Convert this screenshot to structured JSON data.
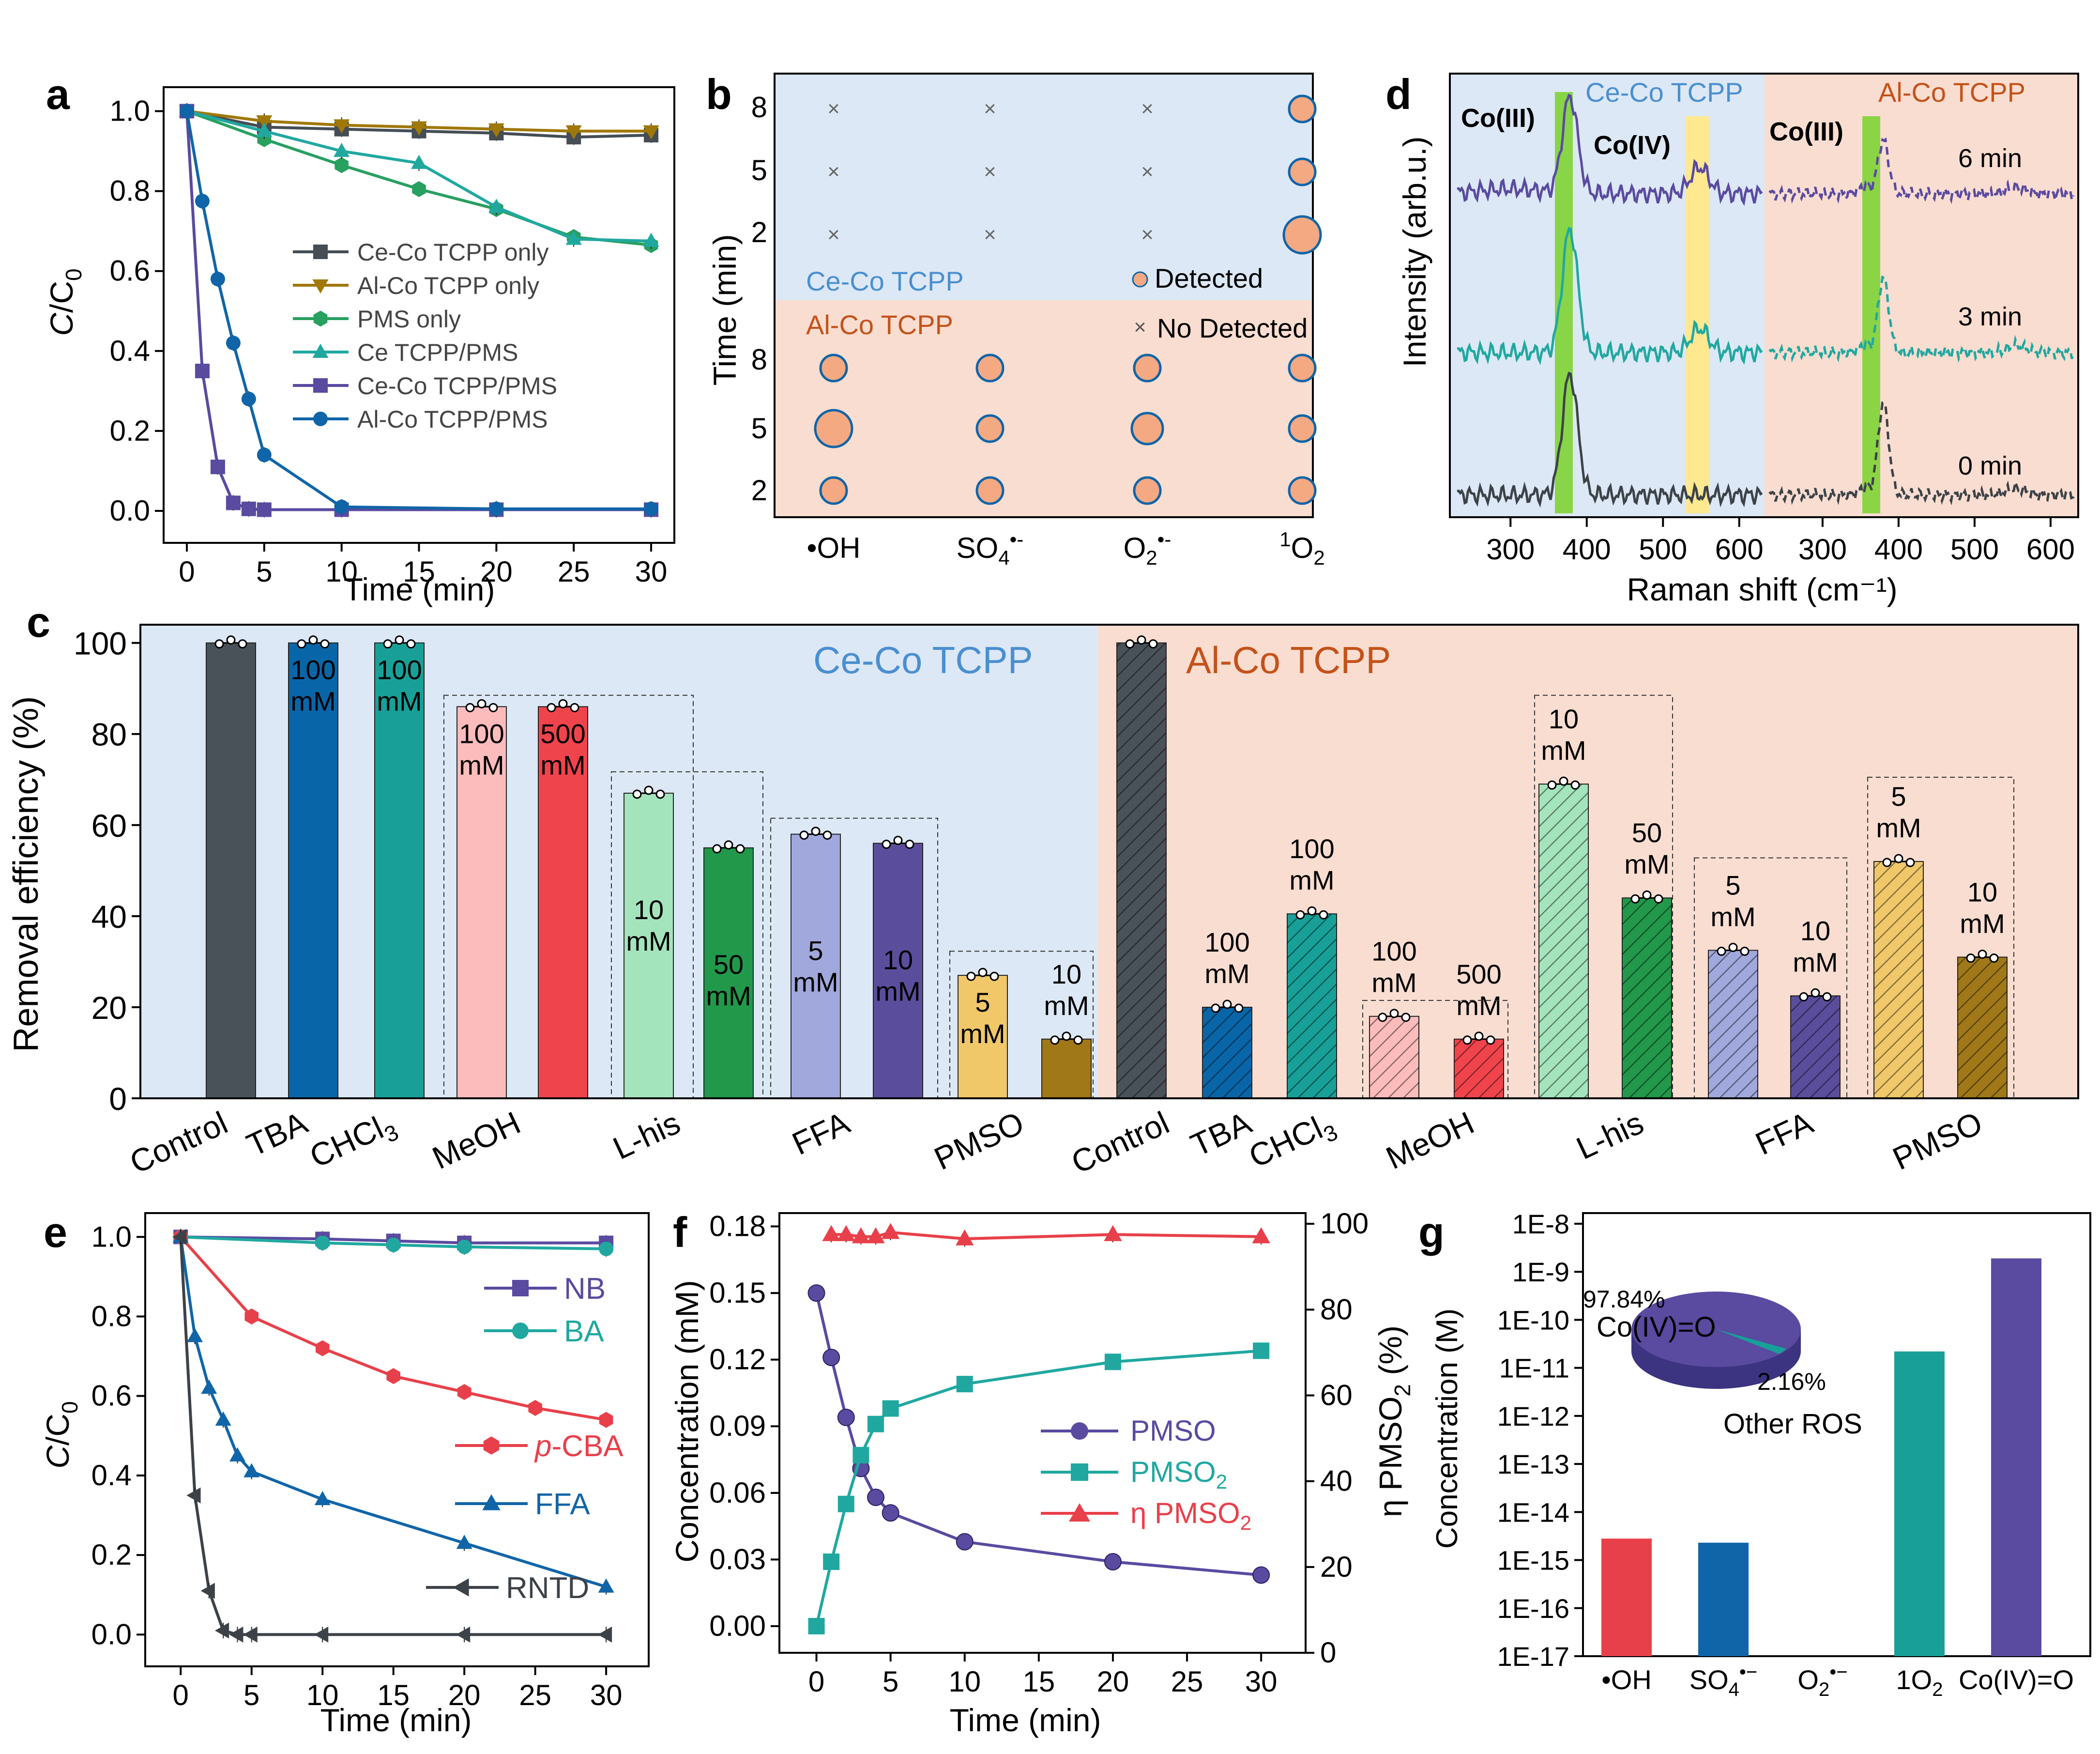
{
  "colors": {
    "cecoBg": "#dce8f5",
    "alcoBg": "#f9ddd0",
    "cecoText": "#4a8fd0",
    "alcoText": "#c4521a",
    "grey": "#454d55",
    "gold": "#a07808",
    "green": "#28a060",
    "teal": "#20a8a0",
    "purple": "#5a4aa0",
    "blue": "#1065a8",
    "red": "#e8404a",
    "dark": "#3c4248"
  },
  "chart_data": [
    {
      "panel": "a",
      "type": "line",
      "xlabel": "Time (min)",
      "ylabel": "C/C0",
      "xlim": [
        -1.5,
        31.5
      ],
      "ylim": [
        -0.08,
        1.06
      ],
      "xticks": [
        0,
        5,
        10,
        15,
        20,
        25,
        30
      ],
      "yticks": [
        0.0,
        0.2,
        0.4,
        0.6,
        0.8,
        1.0
      ],
      "yticklabels": [
        "0.0",
        "0.2",
        "0.4",
        "0.6",
        "0.8",
        "1.0"
      ],
      "series": [
        {
          "name": "Ce-Co TCPP only",
          "color": "#454d55",
          "marker": "square",
          "x": [
            0,
            5,
            10,
            15,
            20,
            25,
            30
          ],
          "y": [
            1.0,
            0.96,
            0.955,
            0.95,
            0.945,
            0.935,
            0.94
          ]
        },
        {
          "name": "Al-Co TCPP only",
          "color": "#a07808",
          "marker": "triangle-down",
          "x": [
            0,
            5,
            10,
            15,
            20,
            25,
            30
          ],
          "y": [
            1.0,
            0.975,
            0.965,
            0.96,
            0.955,
            0.95,
            0.95
          ]
        },
        {
          "name": "PMS only",
          "color": "#28a060",
          "marker": "hexagon",
          "x": [
            0,
            5,
            10,
            15,
            20,
            25,
            30
          ],
          "y": [
            1.0,
            0.93,
            0.865,
            0.805,
            0.755,
            0.685,
            0.665
          ]
        },
        {
          "name": "Ce TCPP/PMS",
          "color": "#20a8a0",
          "marker": "triangle",
          "x": [
            0,
            5,
            10,
            15,
            20,
            25,
            30
          ],
          "y": [
            1.0,
            0.95,
            0.9,
            0.87,
            0.76,
            0.68,
            0.675
          ]
        },
        {
          "name": "Ce-Co TCPP/PMS",
          "color": "#5a4aa0",
          "marker": "square",
          "x": [
            0,
            1,
            2,
            3,
            4,
            5,
            10,
            20,
            30
          ],
          "y": [
            1.0,
            0.35,
            0.11,
            0.02,
            0.005,
            0.003,
            0.003,
            0.003,
            0.003
          ]
        },
        {
          "name": "Al-Co TCPP/PMS",
          "color": "#1065a8",
          "marker": "circle",
          "x": [
            0,
            1,
            2,
            3,
            4,
            5,
            10,
            20,
            30
          ],
          "y": [
            1.0,
            0.775,
            0.58,
            0.42,
            0.28,
            0.14,
            0.01,
            0.005,
            0.005
          ]
        }
      ]
    },
    {
      "panel": "b",
      "type": "bubble",
      "ylabel": "Time (min)",
      "categories": [
        "•OH",
        "SO4•-",
        "O2•-",
        "1O2"
      ],
      "timepoints": [
        8,
        5,
        2
      ],
      "groups": [
        {
          "name": "Ce-Co TCPP",
          "size": [
            [
              0,
              0,
              0,
              2
            ],
            [
              0,
              0,
              0,
              2
            ],
            [
              0,
              0,
              0,
              3
            ]
          ]
        },
        {
          "name": "Al-Co TCPP",
          "size": [
            [
              2,
              2,
              2,
              2
            ],
            [
              3,
              2,
              2.5,
              2
            ],
            [
              2,
              2,
              2,
              2
            ]
          ]
        }
      ],
      "legend": [
        "Detected",
        "No Detected"
      ]
    },
    {
      "panel": "d",
      "type": "line",
      "xlabel": "Raman shift (cm⁻¹)",
      "ylabel": "Intensity (arb.u.)",
      "xticks": [
        300,
        400,
        500,
        600
      ],
      "groups": [
        "Ce-Co TCPP",
        "Al-Co TCPP"
      ],
      "times": [
        "6 min",
        "3 min",
        "0 min"
      ],
      "peaks": [
        {
          "label": "Co(III)",
          "position": 378,
          "group": "Ce-Co TCPP"
        },
        {
          "label": "Co(IV)",
          "position": 548,
          "group": "Ce-Co TCPP"
        },
        {
          "label": "Co(III)",
          "position": 380,
          "group": "Al-Co TCPP"
        }
      ],
      "series": [
        {
          "name": "6 min",
          "color": "#5a4aa0"
        },
        {
          "name": "3 min",
          "color": "#20a8a0"
        },
        {
          "name": "0 min",
          "color": "#3c4248"
        }
      ]
    },
    {
      "panel": "c",
      "type": "bar",
      "ylabel": "Removal efficiency (%)",
      "ylim": [
        0,
        104
      ],
      "yticks": [
        0,
        20,
        40,
        60,
        80,
        100
      ],
      "groups": [
        "Ce-Co TCPP",
        "Al-Co TCPP"
      ],
      "categories": [
        "Control",
        "TBA",
        "CHCl3",
        "MeOH",
        "L-his",
        "FFA",
        "PMSO",
        "Control",
        "TBA",
        "CHCl3",
        "MeOH",
        "L-his",
        "FFA",
        "PMSO"
      ],
      "bars": [
        {
          "scavenger": "Control",
          "group": "Ce-Co TCPP",
          "value": 100,
          "color": "#4a5259",
          "label": ""
        },
        {
          "scavenger": "TBA",
          "group": "Ce-Co TCPP",
          "value": 100,
          "color": "#0866a8",
          "label": "100 mM"
        },
        {
          "scavenger": "CHCl3",
          "group": "Ce-Co TCPP",
          "value": 100,
          "color": "#18a098",
          "label": "100 mM"
        },
        {
          "scavenger": "MeOH",
          "group": "Ce-Co TCPP",
          "value": 86,
          "color": "#fdbcbc",
          "label": "100 mM"
        },
        {
          "scavenger": "MeOH",
          "group": "Ce-Co TCPP",
          "value": 86,
          "color": "#f0444c",
          "label": "500 mM"
        },
        {
          "scavenger": "L-his",
          "group": "Ce-Co TCPP",
          "value": 67,
          "color": "#a4e4bc",
          "label": "10 mM"
        },
        {
          "scavenger": "L-his",
          "group": "Ce-Co TCPP",
          "value": 55,
          "color": "#22984a",
          "label": "50 mM"
        },
        {
          "scavenger": "FFA",
          "group": "Ce-Co TCPP",
          "value": 58,
          "color": "#a0a8dc",
          "label": "5 mM"
        },
        {
          "scavenger": "FFA",
          "group": "Ce-Co TCPP",
          "value": 56,
          "color": "#5a4e9c",
          "label": "10 mM"
        },
        {
          "scavenger": "PMSO",
          "group": "Ce-Co TCPP",
          "value": 27,
          "color": "#f0c86a",
          "label": "5 mM"
        },
        {
          "scavenger": "PMSO",
          "group": "Ce-Co TCPP",
          "value": 13,
          "color": "#a07818",
          "label": "10 mM"
        },
        {
          "scavenger": "Control",
          "group": "Al-Co TCPP",
          "value": 100,
          "color": "#4a5259",
          "label": ""
        },
        {
          "scavenger": "TBA",
          "group": "Al-Co TCPP",
          "value": 20,
          "color": "#0866a8",
          "label": "100 mM"
        },
        {
          "scavenger": "CHCl3",
          "group": "Al-Co TCPP",
          "value": 40.5,
          "color": "#18a098",
          "label": "100 mM"
        },
        {
          "scavenger": "MeOH",
          "group": "Al-Co TCPP",
          "value": 18,
          "color": "#fdbcbc",
          "label": "100 mM"
        },
        {
          "scavenger": "MeOH",
          "group": "Al-Co TCPP",
          "value": 13,
          "color": "#f0444c",
          "label": "500 mM"
        },
        {
          "scavenger": "L-his",
          "group": "Al-Co TCPP",
          "value": 69,
          "color": "#a4e4bc",
          "label": "10 mM"
        },
        {
          "scavenger": "L-his",
          "group": "Al-Co TCPP",
          "value": 44,
          "color": "#22984a",
          "label": "50 mM"
        },
        {
          "scavenger": "FFA",
          "group": "Al-Co TCPP",
          "value": 32.5,
          "color": "#a0a8dc",
          "label": "5 mM"
        },
        {
          "scavenger": "FFA",
          "group": "Al-Co TCPP",
          "value": 22.5,
          "color": "#5a4e9c",
          "label": "10 mM"
        },
        {
          "scavenger": "PMSO",
          "group": "Al-Co TCPP",
          "value": 52,
          "color": "#f0c86a",
          "label": "5 mM"
        },
        {
          "scavenger": "PMSO",
          "group": "Al-Co TCPP",
          "value": 31,
          "color": "#a07818",
          "label": "10 mM"
        }
      ]
    },
    {
      "panel": "e",
      "type": "line",
      "xlabel": "Time (min)",
      "ylabel": "C/C0",
      "xlim": [
        -2.5,
        33
      ],
      "ylim": [
        -0.08,
        1.06
      ],
      "xticks": [
        0,
        5,
        10,
        15,
        20,
        25,
        30
      ],
      "yticks": [
        0.0,
        0.2,
        0.4,
        0.6,
        0.8,
        1.0
      ],
      "yticklabels": [
        "0.0",
        "0.2",
        "0.4",
        "0.6",
        "0.8",
        "1.0"
      ],
      "series": [
        {
          "name": "NB",
          "color": "#5a4aa0",
          "marker": "square",
          "x": [
            0,
            10,
            15,
            20,
            30
          ],
          "y": [
            1.0,
            0.995,
            0.99,
            0.985,
            0.985
          ]
        },
        {
          "name": "BA",
          "color": "#20a8a0",
          "marker": "circle",
          "x": [
            0,
            10,
            15,
            20,
            30
          ],
          "y": [
            1.0,
            0.985,
            0.98,
            0.975,
            0.97
          ]
        },
        {
          "name": "p-CBA",
          "color": "#e8404a",
          "marker": "hexagon",
          "x": [
            0,
            5,
            10,
            15,
            20,
            25,
            30
          ],
          "y": [
            1.0,
            0.8,
            0.72,
            0.65,
            0.61,
            0.57,
            0.54
          ]
        },
        {
          "name": "FFA",
          "color": "#1065a8",
          "marker": "triangle",
          "x": [
            0,
            1,
            2,
            3,
            4,
            5,
            10,
            20,
            30
          ],
          "y": [
            1.0,
            0.75,
            0.62,
            0.54,
            0.45,
            0.41,
            0.34,
            0.23,
            0.12
          ]
        },
        {
          "name": "RNTD",
          "color": "#3c4248",
          "marker": "triangle-left",
          "x": [
            0,
            1,
            2,
            3,
            4,
            5,
            10,
            20,
            30
          ],
          "y": [
            1.0,
            0.35,
            0.11,
            0.01,
            0.0,
            0.0,
            0.0,
            0.0,
            0.0
          ]
        }
      ]
    },
    {
      "panel": "f",
      "type": "line",
      "xlabel": "Time (min)",
      "ylabel": "Concentration (mM)",
      "ylabel2": "η PMSO2 (%)",
      "xlim": [
        -2.5,
        33
      ],
      "ylim": [
        -0.012,
        0.186
      ],
      "y2lim": [
        0,
        102.5
      ],
      "xticks": [
        0,
        5,
        10,
        15,
        20,
        25,
        30
      ],
      "yticks": [
        0.0,
        0.03,
        0.06,
        0.09,
        0.12,
        0.15,
        0.18
      ],
      "yticklabels": [
        "0.00",
        "0.03",
        "0.06",
        "0.09",
        "0.12",
        "0.15",
        "0.18"
      ],
      "y2ticks": [
        0,
        20,
        40,
        60,
        80,
        100
      ],
      "series": [
        {
          "name": "PMSO",
          "color": "#5a4aa0",
          "marker": "sphere",
          "axis": "left",
          "x": [
            0,
            1,
            2,
            3,
            4,
            5,
            10,
            20,
            30
          ],
          "y": [
            0.15,
            0.121,
            0.094,
            0.071,
            0.058,
            0.051,
            0.038,
            0.029,
            0.023
          ]
        },
        {
          "name": "PMSO2",
          "color": "#20a8a0",
          "marker": "square",
          "axis": "left",
          "x": [
            0,
            1,
            2,
            3,
            4,
            5,
            10,
            20,
            30
          ],
          "y": [
            0.0,
            0.029,
            0.055,
            0.077,
            0.091,
            0.098,
            0.109,
            0.119,
            0.124
          ]
        },
        {
          "name": "η PMSO2",
          "color": "#e8404a",
          "marker": "triangle",
          "axis": "right",
          "x": [
            1,
            2,
            3,
            4,
            5,
            10,
            20,
            30
          ],
          "y": [
            97.5,
            97.5,
            97,
            97,
            98,
            96.5,
            97.5,
            97
          ]
        }
      ]
    },
    {
      "panel": "g",
      "type": "bar",
      "ylabel": "Concentration (M)",
      "yscale": "log",
      "ylim": [
        1e-17,
        1e-08
      ],
      "yticklabels": [
        "1E-8",
        "1E-9",
        "1E-10",
        "1E-11",
        "1E-12",
        "1E-13",
        "1E-14",
        "1E-15",
        "1E-16",
        "1E-17"
      ],
      "categories": [
        "•OH",
        "SO4•-",
        "O2•-",
        "1O2",
        "Co(IV)=O"
      ],
      "values": [
        2.8e-15,
        2.3e-15,
        null,
        2.2e-11,
        1.9e-09
      ],
      "colors": [
        "#e8404a",
        "#1065a8",
        "#888888",
        "#18a098",
        "#5a4aa0"
      ],
      "inset_pie": {
        "slices": [
          {
            "label": "Co(IV)=O",
            "percent": 97.84,
            "color": "#5a4aa0"
          },
          {
            "label": "Other ROS",
            "percent": 2.16,
            "color": "#18a098"
          }
        ],
        "labels": [
          "97.84%",
          "2.16%"
        ]
      }
    }
  ],
  "text": {
    "panels": {
      "a": "a",
      "b": "b",
      "c": "c",
      "d": "d",
      "e": "e",
      "f": "f",
      "g": "g"
    },
    "a": {
      "ylab_main": "C",
      "ylab_rest": "/C",
      "ylab_sub": "0",
      "xlab": "Time (min)"
    },
    "b": {
      "ylab": "Time (min)",
      "ceco": "Ce-Co TCPP",
      "alco": "Al-Co TCPP",
      "legend_detected": "Detected",
      "legend_none": "No Detected",
      "tick8": "8",
      "tick5": "5",
      "tick2": "2",
      "cat_oh": "•OH",
      "cat_so4_main": "SO",
      "cat_so4_sub": "4",
      "cat_so4_sup": "•-",
      "cat_o2_main": "O",
      "cat_o2_sub": "2",
      "cat_o2_sup": "•-",
      "cat_1o2_sup": "1",
      "cat_1o2_main": "O",
      "cat_1o2_sub": "2",
      "cross": "×"
    },
    "c": {
      "ylab": "Removal efficiency (%)",
      "ceco": "Ce-Co TCPP",
      "alco": "Al-Co TCPP"
    },
    "d": {
      "ylab": "Intensity (arb.u.)",
      "xlab": "Raman shift (cm⁻¹)",
      "ceco": "Ce-Co TCPP",
      "alco": "Al-Co TCPP",
      "co3": "Co(III)",
      "co4": "Co(IV)",
      "co3b": "Co(III)",
      "t6": "6 min",
      "t3": "3 min",
      "t0": "0 min",
      "ticks": [
        "300",
        "400",
        "500",
        "600",
        "300",
        "400",
        "500",
        "600"
      ]
    },
    "e": {
      "ylab_main": "C",
      "ylab_rest": "/C",
      "ylab_sub": "0",
      "xlab": "Time (min)"
    },
    "f": {
      "xlab": "Time (min)",
      "ylab": "Concentration (mM)",
      "y2lab_main": "η PMSO",
      "y2lab_sub": "2",
      "y2lab_rest": " (%)",
      "leg_pmso": "PMSO",
      "leg_pmso2_main": "PMSO",
      "leg_pmso2_sub": "2",
      "leg_eta_main": "η PMSO",
      "leg_eta_sub": "2"
    },
    "g": {
      "ylab": "Concentration (M)",
      "cat_oh": "•OH",
      "cat_so4_main": "SO",
      "cat_so4_sub": "4",
      "cat_so4_sup": "•−",
      "cat_o2_main": "O",
      "cat_o2_sub": "2",
      "cat_o2_sup": "•−",
      "cat_1o2": "1O",
      "cat_1o2_sub": "2",
      "cat_co": "Co(IV)=O",
      "pie_big": "97.84%",
      "pie_big_label": "Co(IV)=O",
      "pie_small": "2.16%",
      "pie_small_label": "Other ROS"
    }
  }
}
